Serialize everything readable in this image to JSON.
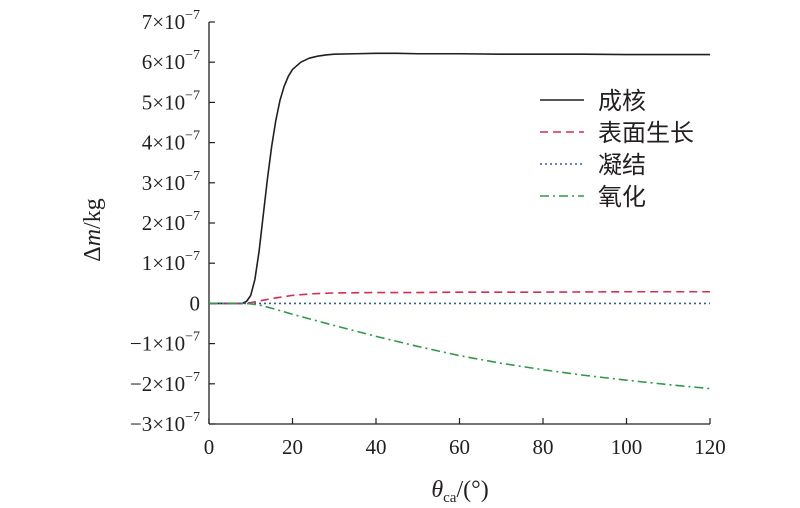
{
  "chart_data": {
    "type": "line",
    "xlabel_symbol": "θ",
    "xlabel_sub": "ca",
    "xlabel_rest": "/(°)",
    "ylabel_pre": "Δ",
    "ylabel_var": "m",
    "ylabel_rest": "/kg",
    "xlim": [
      0,
      120
    ],
    "ylim": [
      -3e-07,
      7e-07
    ],
    "x_ticks": [
      0,
      20,
      40,
      60,
      80,
      100,
      120
    ],
    "x_tick_labels": [
      "0",
      "20",
      "40",
      "60",
      "80",
      "100",
      "120"
    ],
    "y_ticks": [
      7e-07,
      6e-07,
      5e-07,
      4e-07,
      3e-07,
      2e-07,
      1e-07,
      0,
      -1e-07,
      -2e-07,
      -3e-07
    ],
    "y_tick_labels": [
      {
        "mant": "7×10",
        "exp": "−7"
      },
      {
        "mant": "6×10",
        "exp": "−7"
      },
      {
        "mant": "5×10",
        "exp": "−7"
      },
      {
        "mant": "4×10",
        "exp": "−7"
      },
      {
        "mant": "3×10",
        "exp": "−7"
      },
      {
        "mant": "2×10",
        "exp": "−7"
      },
      {
        "mant": "1×10",
        "exp": "−7"
      },
      {
        "mant": "0",
        "exp": ""
      },
      {
        "mant": "−1×10",
        "exp": "−7"
      },
      {
        "mant": "−2×10",
        "exp": "−7"
      },
      {
        "mant": "−3×10",
        "exp": "−7"
      }
    ],
    "grid": false,
    "legend_position": "top-right",
    "series": [
      {
        "name": "成核",
        "color": "#231f20",
        "dash": "solid",
        "x": [
          0,
          5,
          8,
          9,
          10,
          11,
          12,
          13,
          14,
          15,
          16,
          17,
          18,
          19,
          20,
          22,
          24,
          26,
          28,
          30,
          35,
          40,
          45,
          50,
          60,
          70,
          80,
          90,
          100,
          110,
          120
        ],
        "y": [
          0,
          0,
          0,
          5e-09,
          2e-08,
          6e-08,
          1.3e-07,
          2.2e-07,
          3.1e-07,
          3.9e-07,
          4.55e-07,
          5.05e-07,
          5.4e-07,
          5.65e-07,
          5.82e-07,
          6e-07,
          6.1e-07,
          6.15e-07,
          6.18e-07,
          6.2e-07,
          6.21e-07,
          6.22e-07,
          6.22e-07,
          6.21e-07,
          6.21e-07,
          6.2e-07,
          6.2e-07,
          6.2e-07,
          6.19e-07,
          6.19e-07,
          6.19e-07
        ]
      },
      {
        "name": "表面生长",
        "color": "#d62d4f",
        "dash": "dashed",
        "x": [
          0,
          8,
          10,
          12,
          15,
          20,
          25,
          30,
          40,
          50,
          60,
          80,
          100,
          120
        ],
        "y": [
          0,
          0,
          2e-09,
          6e-09,
          1.2e-08,
          2e-08,
          2.4e-08,
          2.6e-08,
          2.7e-08,
          2.7e-08,
          2.8e-08,
          2.8e-08,
          2.9e-08,
          2.9e-08
        ]
      },
      {
        "name": "凝结",
        "color": "#2b5ea7",
        "dash": "dotted",
        "x": [
          0,
          120
        ],
        "y": [
          0,
          0
        ]
      },
      {
        "name": "氧化",
        "color": "#2e9a48",
        "dash": "dashdot",
        "x": [
          0,
          8,
          10,
          12,
          15,
          20,
          25,
          30,
          40,
          50,
          60,
          70,
          80,
          90,
          100,
          110,
          120
        ],
        "y": [
          0,
          0,
          -1e-09,
          -4e-09,
          -1.2e-08,
          -2.7e-08,
          -4.1e-08,
          -5.5e-08,
          -8.2e-08,
          -1.07e-07,
          -1.3e-07,
          -1.49e-07,
          -1.65e-07,
          -1.79e-07,
          -1.91e-07,
          -2.02e-07,
          -2.12e-07
        ]
      }
    ]
  }
}
